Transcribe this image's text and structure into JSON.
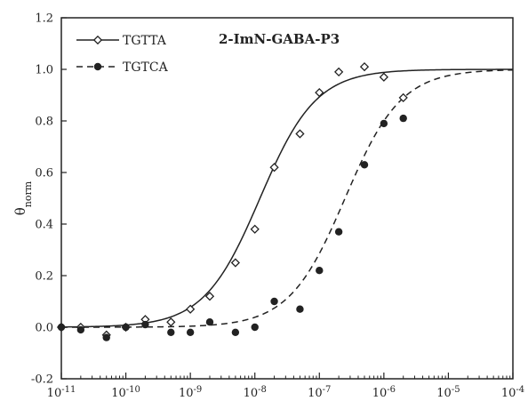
{
  "chart_data": {
    "type": "scatter",
    "title": "2-ImN-GABA-P3",
    "ylabel_main": "θ",
    "ylabel_sub": "norm",
    "xlabel": "",
    "x_scale": "log",
    "xlim": [
      1e-11,
      0.0001
    ],
    "ylim": [
      -0.2,
      1.2
    ],
    "x_ticks": [
      {
        "value": 1e-11,
        "base": "10",
        "exp": "-11"
      },
      {
        "value": 1e-10,
        "base": "10",
        "exp": "-10"
      },
      {
        "value": 1e-09,
        "base": "10",
        "exp": "-9"
      },
      {
        "value": 1e-08,
        "base": "10",
        "exp": "-8"
      },
      {
        "value": 1e-07,
        "base": "10",
        "exp": "-7"
      },
      {
        "value": 1e-06,
        "base": "10",
        "exp": "-6"
      },
      {
        "value": 1e-05,
        "base": "10",
        "exp": "-5"
      },
      {
        "value": 0.0001,
        "base": "10",
        "exp": "-4"
      }
    ],
    "y_ticks": [
      {
        "value": -0.2,
        "label": "-0.2"
      },
      {
        "value": 0.0,
        "label": "0.0"
      },
      {
        "value": 0.2,
        "label": "0.2"
      },
      {
        "value": 0.4,
        "label": "0.4"
      },
      {
        "value": 0.6,
        "label": "0.6"
      },
      {
        "value": 0.8,
        "label": "0.8"
      },
      {
        "value": 1.0,
        "label": "1.0"
      },
      {
        "value": 1.2,
        "label": "1.2"
      }
    ],
    "legend_position": "top-left",
    "series": [
      {
        "name": "TGTTA",
        "marker": "open-diamond",
        "line": "solid",
        "fit": {
          "k": 1.2e-08,
          "n": 1
        },
        "points": [
          {
            "x": 1e-11,
            "y": 0.0
          },
          {
            "x": 2e-11,
            "y": 0.0
          },
          {
            "x": 5e-11,
            "y": -0.03
          },
          {
            "x": 1e-10,
            "y": 0.0
          },
          {
            "x": 2e-10,
            "y": 0.03
          },
          {
            "x": 5e-10,
            "y": 0.02
          },
          {
            "x": 1e-09,
            "y": 0.07
          },
          {
            "x": 2e-09,
            "y": 0.12
          },
          {
            "x": 5e-09,
            "y": 0.25
          },
          {
            "x": 1e-08,
            "y": 0.38
          },
          {
            "x": 2e-08,
            "y": 0.62
          },
          {
            "x": 5e-08,
            "y": 0.75
          },
          {
            "x": 1e-07,
            "y": 0.91
          },
          {
            "x": 2e-07,
            "y": 0.99
          },
          {
            "x": 5e-07,
            "y": 1.01
          },
          {
            "x": 1e-06,
            "y": 0.97
          },
          {
            "x": 2e-06,
            "y": 0.89
          }
        ]
      },
      {
        "name": "TGTCA",
        "marker": "filled-circle",
        "line": "dashed",
        "fit": {
          "k": 2.5e-07,
          "n": 1
        },
        "points": [
          {
            "x": 1e-11,
            "y": 0.0
          },
          {
            "x": 2e-11,
            "y": -0.01
          },
          {
            "x": 5e-11,
            "y": -0.04
          },
          {
            "x": 1e-10,
            "y": 0.0
          },
          {
            "x": 2e-10,
            "y": 0.01
          },
          {
            "x": 5e-10,
            "y": -0.02
          },
          {
            "x": 1e-09,
            "y": -0.02
          },
          {
            "x": 2e-09,
            "y": 0.02
          },
          {
            "x": 5e-09,
            "y": -0.02
          },
          {
            "x": 1e-08,
            "y": 0.0
          },
          {
            "x": 2e-08,
            "y": 0.1
          },
          {
            "x": 5e-08,
            "y": 0.07
          },
          {
            "x": 1e-07,
            "y": 0.22
          },
          {
            "x": 2e-07,
            "y": 0.37
          },
          {
            "x": 5e-07,
            "y": 0.63
          },
          {
            "x": 1e-06,
            "y": 0.79
          },
          {
            "x": 2e-06,
            "y": 0.81
          }
        ]
      }
    ]
  }
}
